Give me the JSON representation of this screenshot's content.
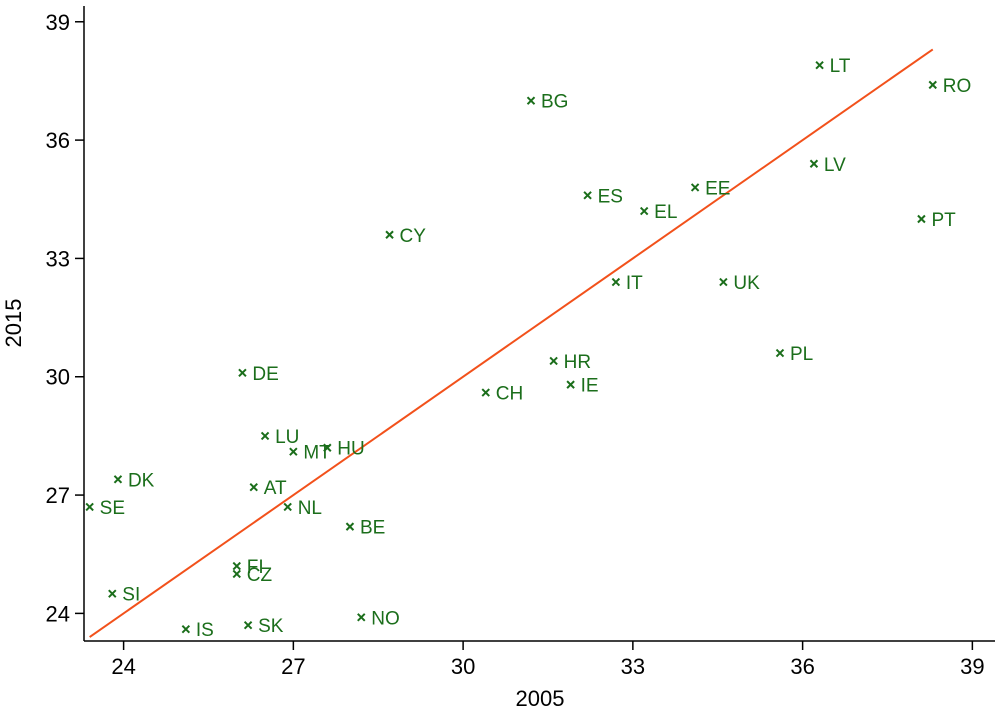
{
  "chart_data": {
    "type": "scatter",
    "xlabel": "2005",
    "ylabel": "2015",
    "xlim": [
      23.3,
      39.4
    ],
    "ylim": [
      23.3,
      39.4
    ],
    "xticks": [
      "24",
      "27",
      "30",
      "33",
      "36",
      "39"
    ],
    "yticks": [
      "24",
      "27",
      "30",
      "33",
      "36",
      "39"
    ],
    "grid": false,
    "colors": {
      "points": "#1b6e1b",
      "fit": "#f2511b"
    },
    "fit_line": {
      "x": [
        23.4,
        38.3
      ],
      "y": [
        23.4,
        38.3
      ]
    },
    "points": [
      {
        "label": "LT",
        "x": 36.3,
        "y": 37.9
      },
      {
        "label": "RO",
        "x": 38.3,
        "y": 37.4
      },
      {
        "label": "BG",
        "x": 31.2,
        "y": 37.0
      },
      {
        "label": "LV",
        "x": 36.2,
        "y": 35.4
      },
      {
        "label": "EE",
        "x": 34.1,
        "y": 34.8
      },
      {
        "label": "ES",
        "x": 32.2,
        "y": 34.6
      },
      {
        "label": "EL",
        "x": 33.2,
        "y": 34.2
      },
      {
        "label": "PT",
        "x": 38.1,
        "y": 34.0
      },
      {
        "label": "CY",
        "x": 28.7,
        "y": 33.6
      },
      {
        "label": "IT",
        "x": 32.7,
        "y": 32.4
      },
      {
        "label": "UK",
        "x": 34.6,
        "y": 32.4
      },
      {
        "label": "PL",
        "x": 35.6,
        "y": 30.6
      },
      {
        "label": "HR",
        "x": 31.6,
        "y": 30.4
      },
      {
        "label": "DE",
        "x": 26.1,
        "y": 30.1
      },
      {
        "label": "IE",
        "x": 31.9,
        "y": 29.8
      },
      {
        "label": "CH",
        "x": 30.4,
        "y": 29.6
      },
      {
        "label": "LU",
        "x": 26.5,
        "y": 28.5
      },
      {
        "label": "MT",
        "x": 27.0,
        "y": 28.1
      },
      {
        "label": "HU",
        "x": 27.6,
        "y": 28.2
      },
      {
        "label": "DK",
        "x": 23.9,
        "y": 27.4
      },
      {
        "label": "AT",
        "x": 26.3,
        "y": 27.2
      },
      {
        "label": "SE",
        "x": 23.4,
        "y": 26.7
      },
      {
        "label": "NL",
        "x": 26.9,
        "y": 26.7
      },
      {
        "label": "BE",
        "x": 28.0,
        "y": 26.2
      },
      {
        "label": "FI",
        "x": 26.0,
        "y": 25.2
      },
      {
        "label": "CZ",
        "x": 26.0,
        "y": 25.0
      },
      {
        "label": "SI",
        "x": 23.8,
        "y": 24.5
      },
      {
        "label": "NO",
        "x": 28.2,
        "y": 23.9
      },
      {
        "label": "SK",
        "x": 26.2,
        "y": 23.7
      },
      {
        "label": "IS",
        "x": 25.1,
        "y": 23.6
      }
    ]
  }
}
